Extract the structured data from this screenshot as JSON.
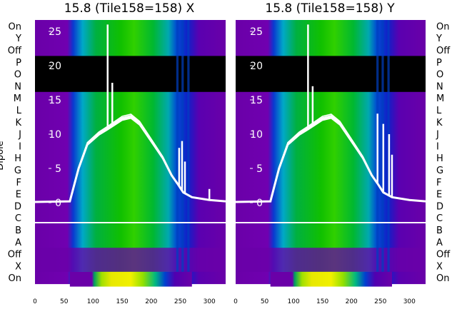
{
  "chart_data": [
    {
      "type": "heatmap",
      "title": "15.8 (Tile158=158) X",
      "ylabel": "Dipole",
      "x_range": [
        0,
        328
      ],
      "x_ticks": [
        0,
        50,
        100,
        150,
        200,
        250,
        300
      ],
      "row_labels": [
        "On",
        "Y",
        "Off",
        "P",
        "O",
        "N",
        "M",
        "L",
        "K",
        "J",
        "I",
        "H",
        "G",
        "F",
        "E",
        "D",
        "C",
        "B",
        "A",
        "Off",
        "X",
        "On"
      ],
      "overlay_ylim": [
        0,
        28
      ],
      "overlay_yticks": [
        0,
        5,
        10,
        15,
        20,
        25
      ],
      "spectrum_envelope": [
        [
          0,
          0.1
        ],
        [
          60,
          0.2
        ],
        [
          75,
          5
        ],
        [
          90,
          8.5
        ],
        [
          110,
          10
        ],
        [
          125,
          10.8
        ],
        [
          150,
          12.2
        ],
        [
          165,
          12.5
        ],
        [
          180,
          11.5
        ],
        [
          200,
          9
        ],
        [
          220,
          6.5
        ],
        [
          235,
          4
        ],
        [
          245,
          2.8
        ],
        [
          255,
          1.5
        ],
        [
          270,
          0.8
        ],
        [
          300,
          0.4
        ],
        [
          328,
          0.2
        ]
      ],
      "spikes": [
        [
          125,
          26
        ],
        [
          133,
          17.5
        ],
        [
          248,
          8
        ],
        [
          253,
          9
        ],
        [
          258,
          6
        ],
        [
          300,
          2
        ]
      ]
    },
    {
      "type": "heatmap",
      "title": "15.8 (Tile158=158) Y",
      "x_range": [
        0,
        328
      ],
      "x_ticks": [
        0,
        50,
        100,
        150,
        200,
        250,
        300
      ],
      "row_labels": [
        "On",
        "Y",
        "Off",
        "P",
        "O",
        "N",
        "M",
        "L",
        "K",
        "J",
        "I",
        "H",
        "G",
        "F",
        "E",
        "D",
        "C",
        "B",
        "A",
        "Off",
        "X",
        "On"
      ],
      "overlay_ylim": [
        0,
        28
      ],
      "overlay_yticks": [
        0,
        5,
        10,
        15,
        20,
        25
      ],
      "spectrum_envelope": [
        [
          0,
          0.1
        ],
        [
          60,
          0.2
        ],
        [
          75,
          5
        ],
        [
          90,
          8.5
        ],
        [
          110,
          10
        ],
        [
          125,
          10.8
        ],
        [
          150,
          12.2
        ],
        [
          165,
          12.5
        ],
        [
          180,
          11.5
        ],
        [
          200,
          9
        ],
        [
          220,
          6.5
        ],
        [
          235,
          4
        ],
        [
          245,
          2.8
        ],
        [
          255,
          1.5
        ],
        [
          270,
          0.8
        ],
        [
          300,
          0.4
        ],
        [
          328,
          0.2
        ]
      ],
      "spikes": [
        [
          125,
          26
        ],
        [
          133,
          17
        ],
        [
          245,
          13
        ],
        [
          255,
          11.5
        ],
        [
          265,
          10
        ],
        [
          270,
          7
        ]
      ]
    }
  ]
}
